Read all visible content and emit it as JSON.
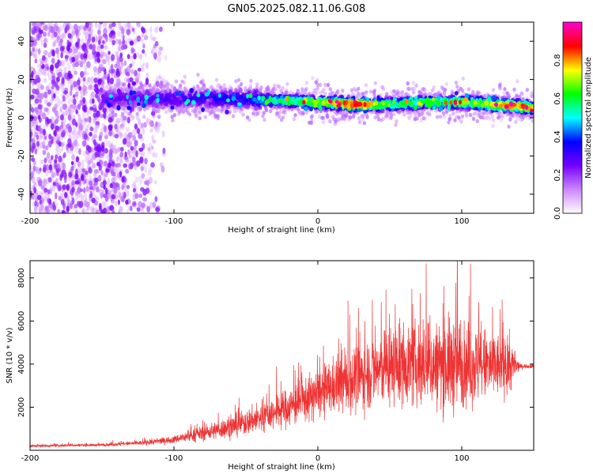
{
  "title": "GN05.2025.082.11.06.G08",
  "chart_data": [
    {
      "type": "heatmap",
      "xlabel": "Height of straight line (km)",
      "ylabel": "Frequency (Hz)",
      "xlim": [
        -200,
        150
      ],
      "ylim": [
        -50,
        50
      ],
      "xticks": [
        -200,
        -100,
        0,
        100
      ],
      "yticks": [
        -40,
        -20,
        0,
        20,
        40
      ],
      "colorbar": {
        "label": "Normalized spectral amplitude",
        "range": [
          0.0,
          1.0
        ],
        "ticks": [
          "0.0",
          "0.2",
          "0.4",
          "0.6",
          "0.8"
        ],
        "colors": [
          "#ffffff",
          "#cc88ff",
          "#7700ff",
          "#0000ff",
          "#00ffff",
          "#00ff00",
          "#ffff00",
          "#ff0000",
          "#ff00cc"
        ]
      },
      "ridge": {
        "x": [
          -150,
          -100,
          -50,
          -30,
          0,
          25,
          50,
          80,
          100,
          120,
          140,
          150
        ],
        "freq": [
          10,
          10,
          10,
          9,
          8,
          7,
          7,
          8,
          8,
          7,
          6,
          5
        ],
        "amplitude": [
          0.2,
          0.25,
          0.3,
          0.45,
          0.55,
          0.75,
          0.5,
          0.5,
          0.55,
          0.6,
          0.7,
          0.6
        ]
      },
      "noise_region": {
        "x": [
          -200,
          -120
        ],
        "freq": [
          -50,
          50
        ],
        "amplitude": [
          0.05,
          0.25
        ]
      }
    },
    {
      "type": "line",
      "xlabel": "Height of straight line (km)",
      "ylabel": "SNR (10 * v/v)",
      "xlim": [
        -200,
        150
      ],
      "ylim": [
        0,
        8800
      ],
      "xticks": [
        -200,
        -100,
        0,
        100
      ],
      "yticks": [
        2000,
        4000,
        6000,
        8000
      ],
      "series": [
        {
          "color": "#ee3333",
          "x": [
            -200,
            -150,
            -120,
            -100,
            -80,
            -60,
            -40,
            -20,
            0,
            20,
            40,
            50,
            60,
            80,
            95,
            100,
            120,
            135,
            140,
            150
          ],
          "mean": [
            200,
            250,
            350,
            500,
            800,
            1100,
            1500,
            2000,
            2600,
            3200,
            3700,
            3900,
            4000,
            3900,
            4000,
            4000,
            3900,
            3900,
            3900,
            3900
          ],
          "amp": [
            100,
            120,
            200,
            300,
            600,
            900,
            1200,
            1600,
            2000,
            2600,
            3000,
            3200,
            3300,
            3500,
            4000,
            3500,
            3000,
            2000,
            200,
            150
          ],
          "peak": {
            "x": 97,
            "y": 8800
          }
        }
      ]
    }
  ]
}
